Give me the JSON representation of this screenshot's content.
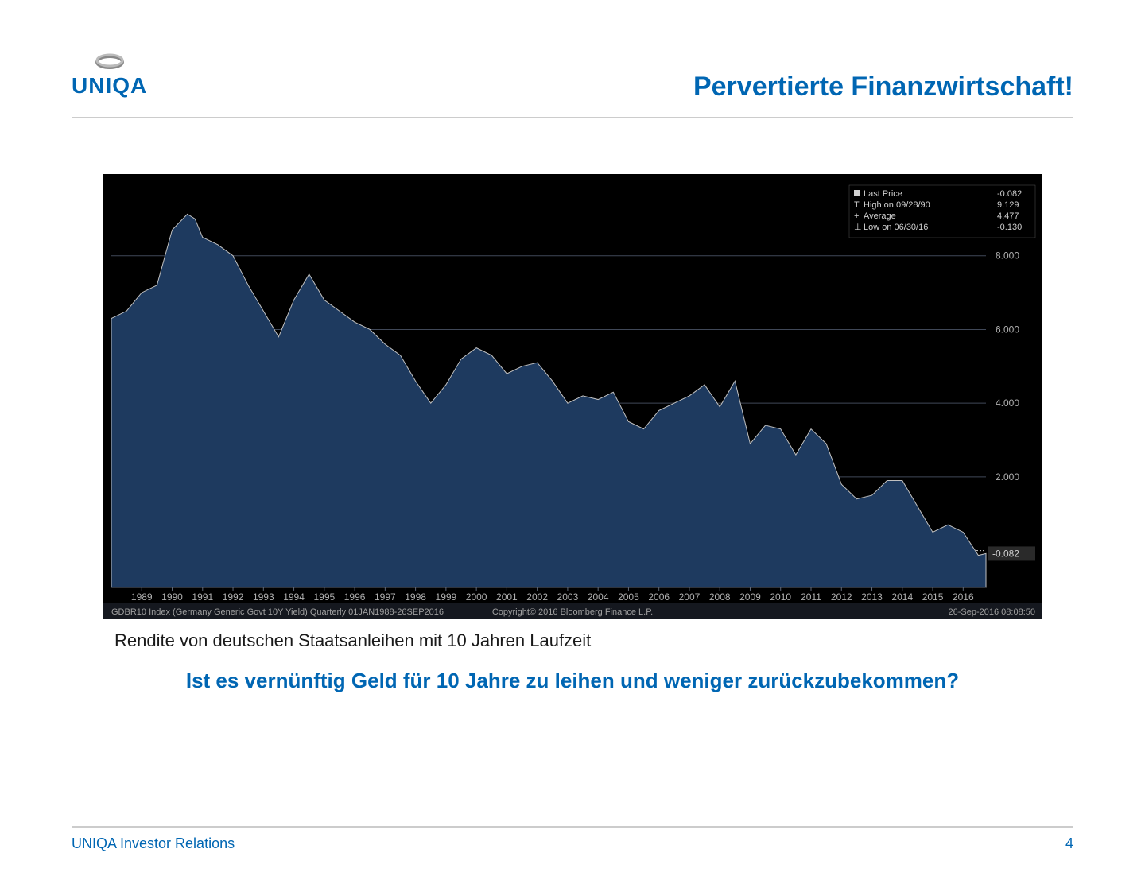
{
  "brand": {
    "name": "UNIQA",
    "name_color": "#0066b3"
  },
  "title": "Pervertierte Finanzwirtschaft!",
  "title_color": "#0066b3",
  "title_fontsize": 34,
  "subtitle": "Rendite von deutschen Staatsanleihen mit 10 Jahren Laufzeit",
  "question": "Ist es vernünftig Geld für 10 Jahre zu leihen und weniger zurückzubekommen?",
  "footer": {
    "left": "UNIQA Investor Relations",
    "page": "4"
  },
  "chart": {
    "type": "area",
    "source_label": "GDBR10 Index  (Germany Generic Govt 10Y Yield)   Quarterly  01JAN1988-26SEP2016",
    "copyright": "Copyright© 2016 Bloomberg Finance L.P.",
    "timestamp": "26-Sep-2016  08:08:50",
    "legend": {
      "last_price_label": "Last Price",
      "last_price_value": "-0.082",
      "high_label": "High on 09/28/90",
      "high_value": "9.129",
      "average_label": "Average",
      "average_value": "4.477",
      "low_label": "Low on 06/30/16",
      "low_value": "-0.130"
    },
    "background_color": "#000000",
    "area_fill_color": "#1e3a5f",
    "line_color": "#c0c0c0",
    "grid_color": "#404858",
    "axis_label_color": "#b0b0b0",
    "current_price_marker": "-0.082",
    "y_axis": {
      "min": -1,
      "max": 10,
      "gridlines": [
        2.0,
        4.0,
        6.0,
        8.0
      ],
      "tick_labels": [
        "2.000",
        "4.000",
        "6.000",
        "8.000"
      ]
    },
    "x_axis": {
      "labels": [
        "1989",
        "1990",
        "1991",
        "1992",
        "1993",
        "1994",
        "1995",
        "1996",
        "1997",
        "1998",
        "1999",
        "2000",
        "2001",
        "2002",
        "2003",
        "2004",
        "2005",
        "2006",
        "2007",
        "2008",
        "2009",
        "2010",
        "2011",
        "2012",
        "2013",
        "2014",
        "2015",
        "2016"
      ]
    },
    "series": {
      "x_years": [
        1988.0,
        1988.5,
        1989.0,
        1989.5,
        1990.0,
        1990.5,
        1990.75,
        1991.0,
        1991.5,
        1992.0,
        1992.5,
        1993.0,
        1993.5,
        1994.0,
        1994.5,
        1995.0,
        1995.5,
        1996.0,
        1996.5,
        1997.0,
        1997.5,
        1998.0,
        1998.5,
        1999.0,
        1999.5,
        2000.0,
        2000.5,
        2001.0,
        2001.5,
        2002.0,
        2002.5,
        2003.0,
        2003.5,
        2004.0,
        2004.5,
        2005.0,
        2005.5,
        2006.0,
        2006.5,
        2007.0,
        2007.5,
        2008.0,
        2008.5,
        2009.0,
        2009.5,
        2010.0,
        2010.5,
        2011.0,
        2011.5,
        2012.0,
        2012.5,
        2013.0,
        2013.5,
        2014.0,
        2014.5,
        2015.0,
        2015.5,
        2016.0,
        2016.5,
        2016.75
      ],
      "y_values": [
        6.3,
        6.5,
        7.0,
        7.2,
        8.7,
        9.129,
        9.0,
        8.5,
        8.3,
        8.0,
        7.2,
        6.5,
        5.8,
        6.8,
        7.5,
        6.8,
        6.5,
        6.2,
        6.0,
        5.6,
        5.3,
        4.6,
        4.0,
        4.5,
        5.2,
        5.5,
        5.3,
        4.8,
        5.0,
        5.1,
        4.6,
        4.0,
        4.2,
        4.1,
        4.3,
        3.5,
        3.3,
        3.8,
        4.0,
        4.2,
        4.5,
        3.9,
        4.6,
        2.9,
        3.4,
        3.3,
        2.6,
        3.3,
        2.9,
        1.8,
        1.4,
        1.5,
        1.9,
        1.9,
        1.2,
        0.5,
        0.7,
        0.5,
        -0.13,
        -0.082
      ]
    }
  }
}
